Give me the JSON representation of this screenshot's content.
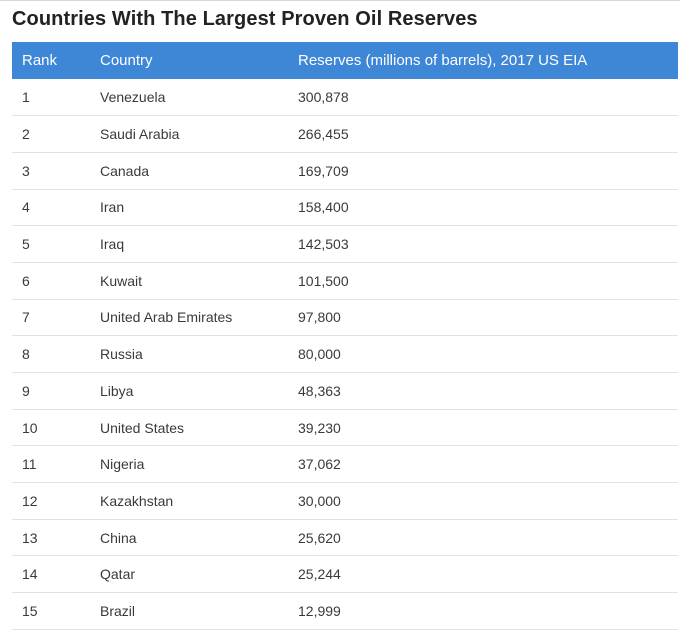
{
  "title": "Countries With The Largest Proven Oil Reserves",
  "table": {
    "headers": [
      "Rank",
      "Country",
      "Reserves (millions of barrels), 2017 US EIA"
    ],
    "rows": [
      {
        "rank": "1",
        "country": "Venezuela",
        "reserves": "300,878"
      },
      {
        "rank": "2",
        "country": "Saudi Arabia",
        "reserves": "266,455"
      },
      {
        "rank": "3",
        "country": "Canada",
        "reserves": "169,709"
      },
      {
        "rank": "4",
        "country": "Iran",
        "reserves": "158,400"
      },
      {
        "rank": "5",
        "country": "Iraq",
        "reserves": "142,503"
      },
      {
        "rank": "6",
        "country": "Kuwait",
        "reserves": "101,500"
      },
      {
        "rank": "7",
        "country": "United Arab Emirates",
        "reserves": "97,800"
      },
      {
        "rank": "8",
        "country": "Russia",
        "reserves": "80,000"
      },
      {
        "rank": "9",
        "country": "Libya",
        "reserves": "48,363"
      },
      {
        "rank": "10",
        "country": "United States",
        "reserves": "39,230"
      },
      {
        "rank": "11",
        "country": "Nigeria",
        "reserves": "37,062"
      },
      {
        "rank": "12",
        "country": "Kazakhstan",
        "reserves": "30,000"
      },
      {
        "rank": "13",
        "country": "China",
        "reserves": "25,620"
      },
      {
        "rank": "14",
        "country": "Qatar",
        "reserves": "25,244"
      },
      {
        "rank": "15",
        "country": "Brazil",
        "reserves": "12,999"
      }
    ]
  },
  "colors": {
    "header_background": "#3e86d6",
    "header_text": "#ffffff",
    "row_divider": "#e2e2e2"
  }
}
